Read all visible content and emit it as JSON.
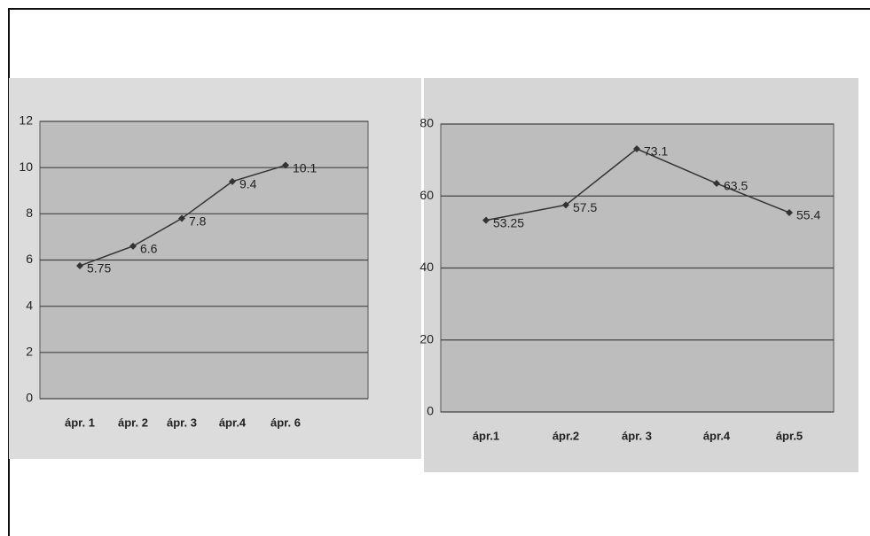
{
  "chart_data": [
    {
      "type": "line",
      "categories": [
        "ápr. 1",
        "ápr. 2",
        "ápr. 3",
        "ápr.4",
        "ápr. 6"
      ],
      "values": [
        5.75,
        6.6,
        7.8,
        9.4,
        10.1
      ],
      "color": "#333333",
      "ylim": [
        0,
        12
      ],
      "yticks": [
        0,
        2,
        4,
        6,
        8,
        10,
        12
      ],
      "grid": true
    },
    {
      "type": "line",
      "categories": [
        "ápr.1",
        "ápr.2",
        "ápr. 3",
        "ápr.4",
        "ápr.5"
      ],
      "values": [
        53.25,
        57.5,
        73.1,
        63.5,
        55.4
      ],
      "color": "#333333",
      "ylim": [
        0,
        80
      ],
      "yticks": [
        0,
        20,
        40,
        60,
        80
      ],
      "grid": true
    }
  ]
}
